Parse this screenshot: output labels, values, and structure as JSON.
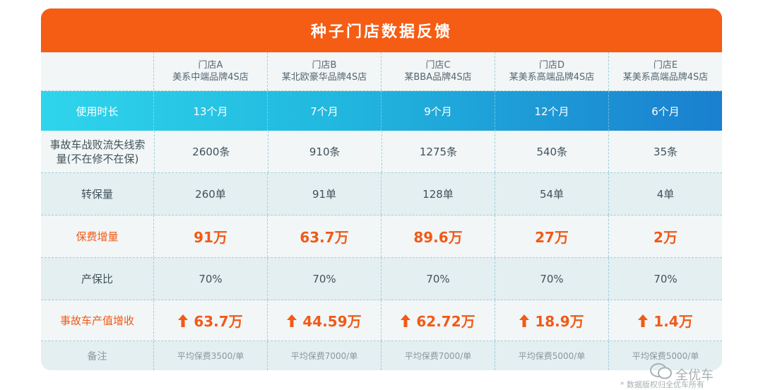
{
  "title": "种子门店数据反馈",
  "stores": [
    {
      "name": "门店A",
      "desc": "美系中端品牌4S店"
    },
    {
      "name": "门店B",
      "desc": "某北欧豪华品牌4S店"
    },
    {
      "name": "门店C",
      "desc": "某BBA品牌4S店"
    },
    {
      "name": "门店D",
      "desc": "某美系高端品牌4S店"
    },
    {
      "name": "门店E",
      "desc": "某美系高端品牌4S店"
    }
  ],
  "rows": {
    "usage": {
      "label": "使用时长",
      "values": [
        "13个月",
        "7个月",
        "9个月",
        "12个月",
        "6个月"
      ]
    },
    "leads": {
      "label": "事故车战败流失线索量(不在修不在保)",
      "values": [
        "2600条",
        "910条",
        "1275条",
        "540条",
        "35条"
      ]
    },
    "conversion": {
      "label": "转保量",
      "values": [
        "260单",
        "91单",
        "128单",
        "54单",
        "4单"
      ]
    },
    "premium": {
      "label": "保费增量",
      "values": [
        "91万",
        "63.7万",
        "89.6万",
        "27万",
        "2万"
      ]
    },
    "ratio": {
      "label": "产保比",
      "values": [
        "70%",
        "70%",
        "70%",
        "70%",
        "70%"
      ]
    },
    "revenue": {
      "label": "事故车产值增收",
      "values": [
        "63.7万",
        "44.59万",
        "62.72万",
        "18.9万",
        "1.4万"
      ]
    },
    "note": {
      "label": "备注",
      "values": [
        "平均保费3500/单",
        "平均保费7000/单",
        "平均保费7000/单",
        "平均保费5000/单",
        "平均保费5000/单"
      ]
    }
  },
  "watermark": {
    "brand": "全优车",
    "note": "* 数据版权归全优车所有"
  },
  "colors": {
    "accent": "#f55d14",
    "usage_gradient_start": "#2fd5ec",
    "usage_gradient_end": "#1a7fcf",
    "highlight_text": "#f15a17"
  }
}
